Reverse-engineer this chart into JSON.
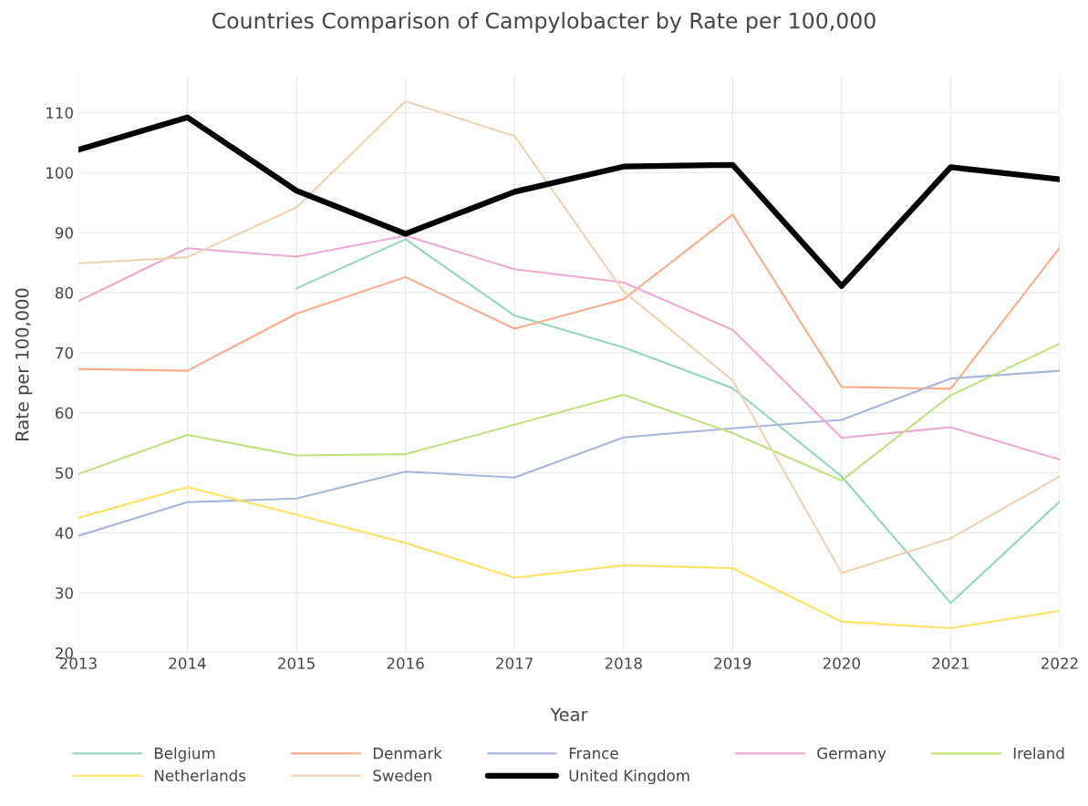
{
  "chart_data": {
    "type": "line",
    "title": "Countries Comparison of Campylobacter by Rate per 100,000",
    "xlabel": "Year",
    "ylabel": "Rate per 100,000",
    "x": [
      2013,
      2014,
      2015,
      2016,
      2017,
      2018,
      2019,
      2020,
      2021,
      2022
    ],
    "xlim": [
      2013,
      2022
    ],
    "xticks": [
      2013,
      2014,
      2015,
      2016,
      2017,
      2018,
      2019,
      2020,
      2021,
      2022
    ],
    "ylim": [
      20,
      116
    ],
    "yticks": [
      20,
      30,
      40,
      50,
      60,
      70,
      80,
      90,
      100,
      110
    ],
    "grid": true,
    "legend": "bottom",
    "line_style": "solid",
    "series": [
      {
        "name": "Belgium",
        "color": "#93d6bd",
        "values": [
          null,
          null,
          80.7,
          88.9,
          76.2,
          70.9,
          64.1,
          49.4,
          28.3,
          45.2
        ]
      },
      {
        "name": "Denmark",
        "color": "#fdac8b",
        "values": [
          67.3,
          67.0,
          76.5,
          82.6,
          74.0,
          78.9,
          93.0,
          64.3,
          64.0,
          87.5
        ]
      },
      {
        "name": "France",
        "color": "#a9b6db",
        "values": [
          39.5,
          45.1,
          45.7,
          50.2,
          49.2,
          55.9,
          57.4,
          58.8,
          65.7,
          67.0
        ]
      },
      {
        "name": "Germany",
        "color": "#eea9d4",
        "values": [
          78.6,
          87.4,
          86.0,
          89.5,
          83.9,
          81.7,
          73.8,
          55.8,
          57.6,
          52.2
        ]
      },
      {
        "name": "Ireland",
        "color": "#bfe27e",
        "values": [
          49.8,
          56.3,
          52.9,
          53.1,
          58.0,
          63.0,
          56.6,
          48.7,
          62.9,
          71.5
        ]
      },
      {
        "name": "Netherlands",
        "color": "#ffe263",
        "values": [
          42.5,
          47.6,
          43.0,
          38.3,
          32.5,
          34.6,
          34.1,
          25.2,
          24.1,
          27.0
        ]
      },
      {
        "name": "Sweden",
        "color": "#ecd4b2",
        "values": [
          84.9,
          85.9,
          94.2,
          111.9,
          106.1,
          80.2,
          65.4,
          33.3,
          39.1,
          49.4
        ]
      },
      {
        "name": "United Kingdom",
        "color": "#000000",
        "values": [
          103.8,
          109.2,
          97.0,
          89.8,
          96.8,
          101.0,
          101.3,
          81.1,
          100.9,
          98.9
        ]
      }
    ]
  }
}
